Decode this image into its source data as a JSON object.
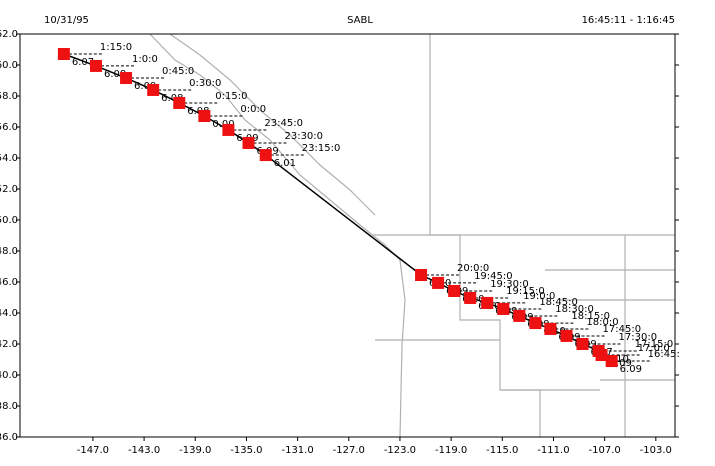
{
  "chart_data": {
    "type": "scatter",
    "header_left": "10/31/95",
    "title": "SABL",
    "header_right": "16:45:11 - 1:16:45",
    "x": [
      -149.27,
      -146.76,
      -144.41,
      -142.29,
      -140.25,
      -138.29,
      -136.41,
      -134.84,
      -133.49,
      -121.35,
      -120.02,
      -118.76,
      -117.51,
      -116.18,
      -114.92,
      -113.67,
      -112.41,
      -111.24,
      -109.98,
      -108.73,
      -107.47,
      -107.24,
      -106.45
    ],
    "series": [
      {
        "color": "#ee1111",
        "values": [
          60.71,
          59.94,
          59.16,
          58.39,
          57.55,
          56.71,
          55.81,
          54.97,
          54.19,
          46.45,
          45.94,
          45.42,
          44.97,
          44.65,
          44.26,
          43.81,
          43.35,
          42.97,
          42.52,
          42.0,
          41.55,
          41.29,
          40.9
        ]
      }
    ],
    "time_labels": [
      "1:15:0",
      "1:0:0",
      "0:45:0",
      "0:30:0",
      "0:15:0",
      "0:0:0",
      "23:45:0",
      "23:30:0",
      "23:15:0",
      "20:0:0",
      "19:45:0",
      "19:30:0",
      "19:15:0",
      "19:0:0",
      "18:45:0",
      "18:30:0",
      "18:15:0",
      "18:0:0",
      "17:45:0",
      "17:30:0",
      "17:15:0",
      "17:0:0",
      "16:45:"
    ],
    "reading_labels": [
      "6.07",
      "6.08",
      "6.09",
      "6.08",
      "6.08",
      "0.00",
      "6.09",
      "6.09",
      "6.01",
      "6.10",
      "6.09",
      "6.10",
      "6.10",
      "6.09",
      "6.09",
      "6.09",
      "6.10",
      "6.09",
      "6.09",
      "6.07",
      "6.10",
      "6.09",
      "6.09"
    ],
    "xlim": [
      -152.7,
      -101.5
    ],
    "xticks": [
      {
        "value": -147,
        "label": "-147.0"
      },
      {
        "value": -143,
        "label": "-143.0"
      },
      {
        "value": -139,
        "label": "-139.0"
      },
      {
        "value": -135,
        "label": "-135.0"
      },
      {
        "value": -131,
        "label": "-131.0"
      },
      {
        "value": -127,
        "label": "-127.0"
      },
      {
        "value": -123,
        "label": "-123.0"
      },
      {
        "value": -119,
        "label": "-119.0"
      },
      {
        "value": -115,
        "label": "-115.0"
      },
      {
        "value": -111,
        "label": "-111.0"
      },
      {
        "value": -107,
        "label": "-107.0"
      },
      {
        "value": -103,
        "label": "-103.0"
      }
    ],
    "ylim": [
      36,
      62
    ],
    "yticks": [
      {
        "value": 36,
        "label": "36.0"
      },
      {
        "value": 38,
        "label": "38.0"
      },
      {
        "value": 40,
        "label": "40.0"
      },
      {
        "value": 42,
        "label": "42.0"
      },
      {
        "value": 44,
        "label": "44.0"
      },
      {
        "value": 46,
        "label": "46.0"
      },
      {
        "value": 48,
        "label": "48.0"
      },
      {
        "value": 50,
        "label": "50.0"
      },
      {
        "value": 52,
        "label": "52.0"
      },
      {
        "value": 54,
        "label": "54.0"
      },
      {
        "value": 56,
        "label": "56.0"
      },
      {
        "value": 58,
        "label": "58.0"
      },
      {
        "value": 60,
        "label": "60.0"
      },
      {
        "value": 62,
        "label": "62.0"
      }
    ]
  }
}
